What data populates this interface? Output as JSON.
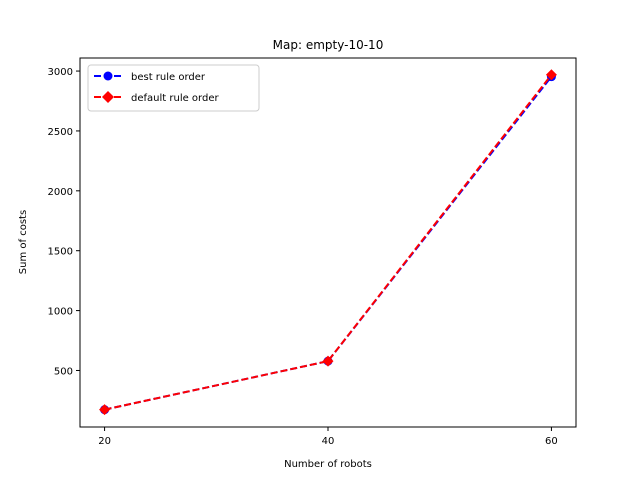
{
  "chart_data": {
    "type": "line",
    "title": "Map: empty-10-10",
    "xlabel": "Number of robots",
    "ylabel": "Sum of costs",
    "x": [
      20,
      40,
      60
    ],
    "x_ticks": [
      "20",
      "40",
      "60"
    ],
    "y_ticks": [
      "500",
      "1000",
      "1500",
      "2000",
      "2500",
      "3000"
    ],
    "y_tick_values": [
      500,
      1000,
      1500,
      2000,
      2500,
      3000
    ],
    "xlim": [
      17.8,
      62.2
    ],
    "ylim": [
      28,
      3109
    ],
    "grid": false,
    "legend_position": "upper left",
    "series": [
      {
        "name": "best rule order",
        "values": [
          173,
          578,
          2953
        ],
        "color": "#0000ff",
        "marker": "circle",
        "linestyle": "dashed"
      },
      {
        "name": "default rule order",
        "values": [
          173,
          578,
          2969
        ],
        "color": "#ff0000",
        "marker": "diamond",
        "linestyle": "dashed"
      }
    ]
  }
}
